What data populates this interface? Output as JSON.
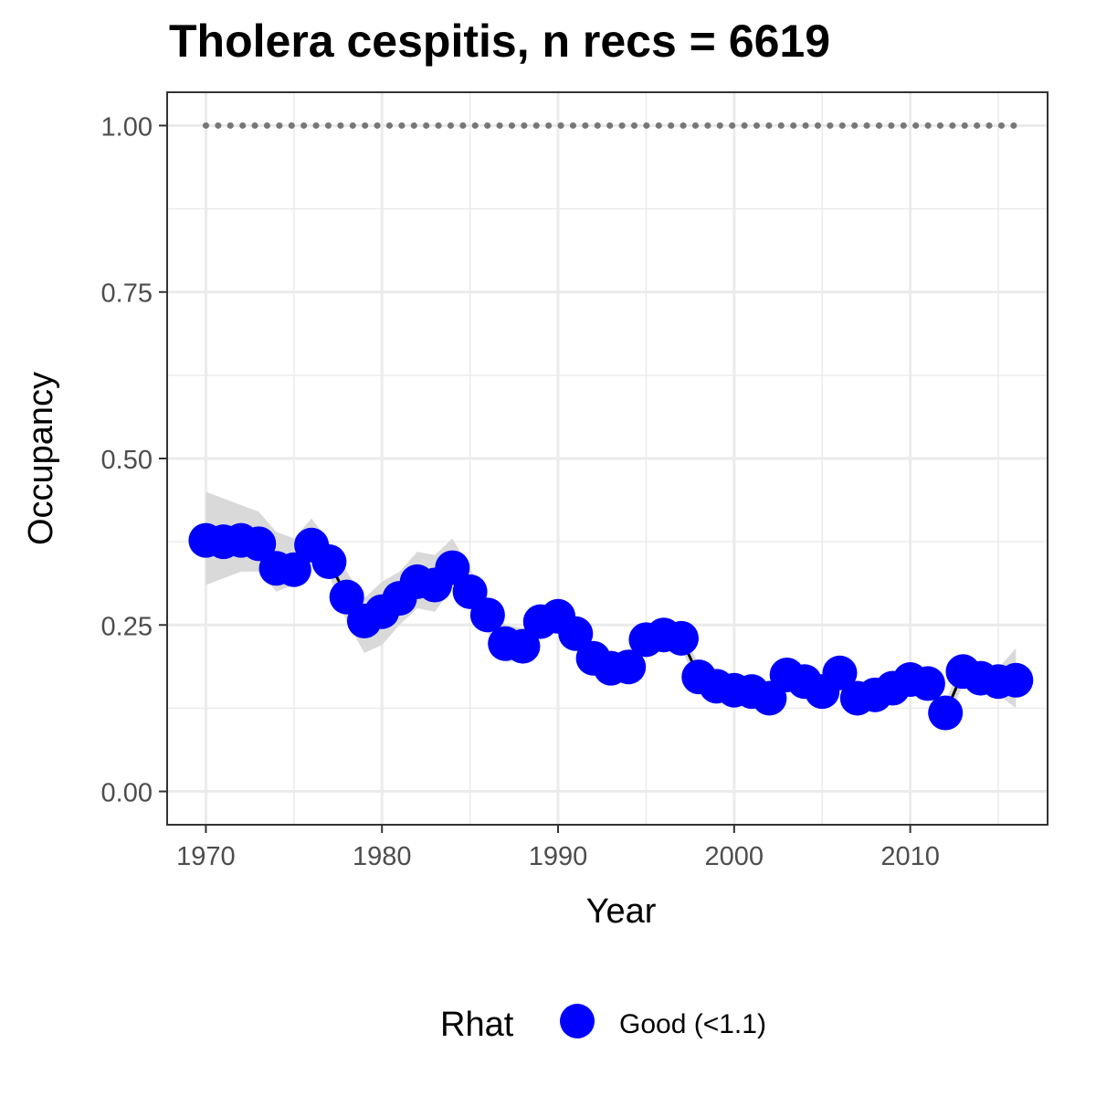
{
  "chart_data": {
    "type": "line",
    "title": "Tholera cespitis, n recs = 6619",
    "xlabel": "Year",
    "ylabel": "Occupancy",
    "xlim": [
      1967.8,
      2017.8
    ],
    "ylim": [
      -0.05,
      1.05
    ],
    "x_ticks": [
      1970,
      1980,
      1990,
      2000,
      2010
    ],
    "x_tick_labels": [
      "1970",
      "1980",
      "1990",
      "2000",
      "2010"
    ],
    "y_ticks": [
      0,
      0.25,
      0.5,
      0.75,
      1.0
    ],
    "y_tick_labels": [
      "0.00",
      "0.25",
      "0.50",
      "0.75",
      "1.00"
    ],
    "grid": true,
    "x": [
      1970,
      1971,
      1972,
      1973,
      1974,
      1975,
      1976,
      1977,
      1978,
      1979,
      1980,
      1981,
      1982,
      1983,
      1984,
      1985,
      1986,
      1987,
      1988,
      1989,
      1990,
      1991,
      1992,
      1993,
      1994,
      1995,
      1996,
      1997,
      1998,
      1999,
      2000,
      2001,
      2002,
      2003,
      2004,
      2005,
      2006,
      2007,
      2008,
      2009,
      2010,
      2011,
      2012,
      2013,
      2014,
      2015,
      2016
    ],
    "series": [
      {
        "name": "Good (<1.1)",
        "color": "#0000ff",
        "values": [
          0.377,
          0.375,
          0.377,
          0.372,
          0.335,
          0.333,
          0.37,
          0.345,
          0.292,
          0.256,
          0.27,
          0.29,
          0.315,
          0.31,
          0.336,
          0.3,
          0.265,
          0.222,
          0.218,
          0.255,
          0.263,
          0.237,
          0.2,
          0.185,
          0.187,
          0.228,
          0.235,
          0.23,
          0.172,
          0.158,
          0.152,
          0.15,
          0.14,
          0.175,
          0.165,
          0.15,
          0.178,
          0.14,
          0.145,
          0.155,
          0.168,
          0.162,
          0.118,
          0.18,
          0.17,
          0.165,
          0.167
        ],
        "lower": [
          0.31,
          0.32,
          0.33,
          0.33,
          0.3,
          0.31,
          0.345,
          0.325,
          0.255,
          0.208,
          0.22,
          0.25,
          0.275,
          0.27,
          0.305,
          0.275,
          0.24,
          0.195,
          0.195,
          0.235,
          0.245,
          0.215,
          0.185,
          0.17,
          0.17,
          0.21,
          0.222,
          0.215,
          0.155,
          0.145,
          0.14,
          0.135,
          0.125,
          0.16,
          0.15,
          0.135,
          0.16,
          0.125,
          0.13,
          0.14,
          0.155,
          0.15,
          0.1,
          0.16,
          0.155,
          0.145,
          0.125
        ],
        "upper": [
          0.45,
          0.44,
          0.43,
          0.42,
          0.39,
          0.38,
          0.41,
          0.375,
          0.33,
          0.29,
          0.315,
          0.33,
          0.36,
          0.355,
          0.38,
          0.335,
          0.29,
          0.25,
          0.245,
          0.275,
          0.285,
          0.26,
          0.22,
          0.2,
          0.21,
          0.248,
          0.255,
          0.245,
          0.19,
          0.172,
          0.165,
          0.165,
          0.155,
          0.19,
          0.18,
          0.165,
          0.195,
          0.155,
          0.16,
          0.17,
          0.18,
          0.175,
          0.135,
          0.2,
          0.185,
          0.185,
          0.215
        ]
      }
    ],
    "reference_line": {
      "y": 1.0,
      "style": "dotted",
      "color": "#777777"
    },
    "ribbon_color": "#d9d9d9",
    "legend": {
      "title": "Rhat",
      "placement": "bottom",
      "items": [
        "Good (<1.1)"
      ]
    }
  }
}
